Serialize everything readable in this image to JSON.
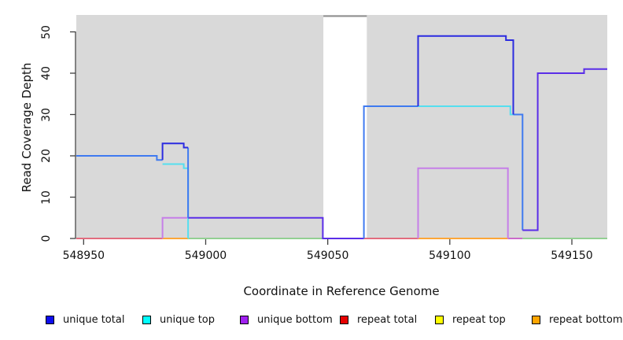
{
  "figure": {
    "xlabel": "Coordinate in Reference Genome",
    "ylabel": "Read Coverage Depth",
    "background": "#FFFFFF",
    "plot_background": "#D9D9D9",
    "axis_color": "#3F3F3F"
  },
  "legend": {
    "items": [
      {
        "label": "unique total",
        "color": "#0D0DEE"
      },
      {
        "label": "unique top",
        "color": "#00FFFF"
      },
      {
        "label": "unique bottom",
        "color": "#A020F0"
      },
      {
        "label": "repeat total",
        "color": "#E60000"
      },
      {
        "label": "repeat top",
        "color": "#FFFF00"
      },
      {
        "label": "repeat bottom",
        "color": "#FFA500"
      }
    ]
  },
  "chart_data": {
    "type": "line",
    "subtype": "step-coverage",
    "title": "",
    "xlabel": "Coordinate in Reference Genome",
    "ylabel": "Read Coverage Depth",
    "xlim": [
      548947,
      549164.5
    ],
    "ylim": [
      0,
      54
    ],
    "grid": false,
    "legend_position": "bottom",
    "x_ticks": [
      "548950",
      "549000",
      "549050",
      "549100",
      "549150"
    ],
    "x_tick_values": [
      548950,
      549000,
      549050,
      549100,
      549150
    ],
    "y_ticks": [
      "0",
      "10",
      "20",
      "30",
      "40",
      "50"
    ],
    "y_tick_values": [
      0,
      10,
      20,
      30,
      40,
      50
    ],
    "masked_region": {
      "x_start": 549048.2,
      "x_end": 549066,
      "top_value": 53.8,
      "fill": "#FFFFFF",
      "border_color": "#909090"
    },
    "series": [
      {
        "name": "unique total",
        "color": "#0D0DEE",
        "step_points": [
          [
            548947,
            20
          ],
          [
            548980,
            19
          ],
          [
            548982,
            23
          ],
          [
            548991,
            22
          ],
          [
            548993,
            5
          ],
          [
            549048,
            0
          ],
          [
            549065,
            32
          ],
          [
            549087,
            49
          ],
          [
            549123,
            48
          ],
          [
            549126,
            30
          ],
          [
            549130,
            2
          ],
          [
            549136,
            40
          ],
          [
            549155,
            41
          ],
          [
            549164,
            41
          ]
        ]
      },
      {
        "name": "unique top",
        "color": "#00FFFF",
        "step_points": [
          [
            548947,
            20
          ],
          [
            548980,
            19
          ],
          [
            548982,
            18
          ],
          [
            548991,
            17
          ],
          [
            548993,
            0
          ],
          [
            549065,
            32
          ],
          [
            549125,
            30
          ],
          [
            549130,
            0
          ],
          [
            549164,
            0
          ]
        ]
      },
      {
        "name": "unique bottom",
        "color": "#A020F0",
        "step_points": [
          [
            548947,
            0
          ],
          [
            548982,
            5
          ],
          [
            549048,
            0
          ],
          [
            549087,
            17
          ],
          [
            549124,
            0
          ],
          [
            549130,
            2
          ],
          [
            549136,
            40
          ],
          [
            549155,
            41
          ],
          [
            549164,
            41
          ]
        ]
      },
      {
        "name": "repeat total",
        "color": "#E60000",
        "step_points": [
          [
            548947,
            0
          ],
          [
            549164,
            0
          ]
        ]
      },
      {
        "name": "repeat top",
        "color": "#FFFF00",
        "step_points": [
          [
            548947,
            0
          ],
          [
            549164,
            0
          ]
        ]
      },
      {
        "name": "repeat bottom",
        "color": "#FFA500",
        "step_points": [
          [
            548947,
            0
          ],
          [
            549164,
            0
          ]
        ]
      }
    ],
    "render_lines": [
      {
        "name": "baseline-red-left",
        "color": "#E05A6E",
        "width": 1.8,
        "pts": [
          [
            548947,
            0
          ],
          [
            548982.3,
            0
          ]
        ]
      },
      {
        "name": "baseline-orange-left",
        "color": "#FF9D1E",
        "width": 1.8,
        "pts": [
          [
            548982.3,
            0
          ],
          [
            548992.8,
            0
          ]
        ]
      },
      {
        "name": "baseline-green-left",
        "color": "#86CB86",
        "width": 1.8,
        "pts": [
          [
            548992.8,
            0
          ],
          [
            549048,
            0
          ]
        ]
      },
      {
        "name": "baseline-red-mid",
        "color": "#E05A6E",
        "width": 1.8,
        "pts": [
          [
            549064.8,
            0
          ],
          [
            549087,
            0
          ]
        ]
      },
      {
        "name": "baseline-orange-mid",
        "color": "#FF9D1E",
        "width": 1.8,
        "pts": [
          [
            549087,
            0
          ],
          [
            549123.8,
            0
          ]
        ]
      },
      {
        "name": "baseline-magenta",
        "color": "#C457C4",
        "width": 1.8,
        "pts": [
          [
            549123.8,
            0
          ],
          [
            549129.8,
            0
          ]
        ]
      },
      {
        "name": "baseline-green-right",
        "color": "#86CB86",
        "width": 1.8,
        "pts": [
          [
            549129.8,
            0
          ],
          [
            549164.5,
            0
          ]
        ]
      },
      {
        "name": "unique-bottom-left",
        "color": "#C67FE8",
        "width": 2,
        "pts": [
          [
            548982.3,
            0
          ],
          [
            548982.3,
            5
          ],
          [
            548993.2,
            5
          ]
        ]
      },
      {
        "name": "unique-bottom-mid",
        "color": "#C67FE8",
        "width": 2,
        "pts": [
          [
            549087,
            0
          ],
          [
            549087,
            17
          ],
          [
            549123.8,
            17
          ],
          [
            549123.8,
            0
          ]
        ]
      },
      {
        "name": "unique-top-left",
        "color": "#55DFEF",
        "width": 2,
        "pts": [
          [
            548982.3,
            18
          ],
          [
            548991,
            18
          ],
          [
            548991,
            17
          ],
          [
            548992.8,
            17
          ],
          [
            548992.8,
            0
          ]
        ]
      },
      {
        "name": "unique-top-right",
        "color": "#55DFEF",
        "width": 2,
        "pts": [
          [
            549087,
            32
          ],
          [
            549124.8,
            32
          ],
          [
            549124.8,
            30
          ],
          [
            549126,
            30
          ]
        ]
      },
      {
        "name": "total-over-bottom-mid",
        "color": "#5B2EE8",
        "width": 2,
        "pts": [
          [
            548992.8,
            5
          ],
          [
            549048,
            5
          ],
          [
            549048,
            0
          ],
          [
            549064.8,
            0
          ]
        ]
      },
      {
        "name": "total-over-top-left",
        "color": "#3F7AF0",
        "width": 2,
        "pts": [
          [
            548947,
            20
          ],
          [
            548980,
            20
          ],
          [
            548980,
            19
          ],
          [
            548982.3,
            19
          ]
        ]
      },
      {
        "name": "total-drop-left",
        "color": "#3F7AF0",
        "width": 2,
        "pts": [
          [
            548992.8,
            22
          ],
          [
            548992.8,
            5
          ]
        ]
      },
      {
        "name": "total-over-top-rise32",
        "color": "#3F7AF0",
        "width": 2,
        "pts": [
          [
            549064.8,
            0
          ],
          [
            549064.8,
            32
          ],
          [
            549087,
            32
          ]
        ]
      },
      {
        "name": "total-over-top-step30",
        "color": "#3F7AF0",
        "width": 2,
        "pts": [
          [
            549126,
            30
          ],
          [
            549129.8,
            30
          ],
          [
            549129.8,
            2
          ]
        ]
      },
      {
        "name": "unique-total-peak23",
        "color": "#2B2BE0",
        "width": 2,
        "pts": [
          [
            548982.3,
            19
          ],
          [
            548982.3,
            23
          ],
          [
            548991,
            23
          ],
          [
            548991,
            22
          ],
          [
            548992.8,
            22
          ]
        ]
      },
      {
        "name": "unique-total-peak49",
        "color": "#2B2BE0",
        "width": 2,
        "pts": [
          [
            549087,
            32
          ],
          [
            549087,
            49
          ],
          [
            549123,
            49
          ],
          [
            549123,
            48
          ],
          [
            549126,
            48
          ],
          [
            549126,
            30
          ]
        ]
      },
      {
        "name": "total-over-bottom-right",
        "color": "#5B2EE8",
        "width": 2,
        "pts": [
          [
            549129.8,
            2
          ],
          [
            549136,
            2
          ],
          [
            549136,
            40
          ],
          [
            549155,
            40
          ],
          [
            549155,
            41
          ],
          [
            549164.5,
            41
          ]
        ]
      }
    ]
  }
}
